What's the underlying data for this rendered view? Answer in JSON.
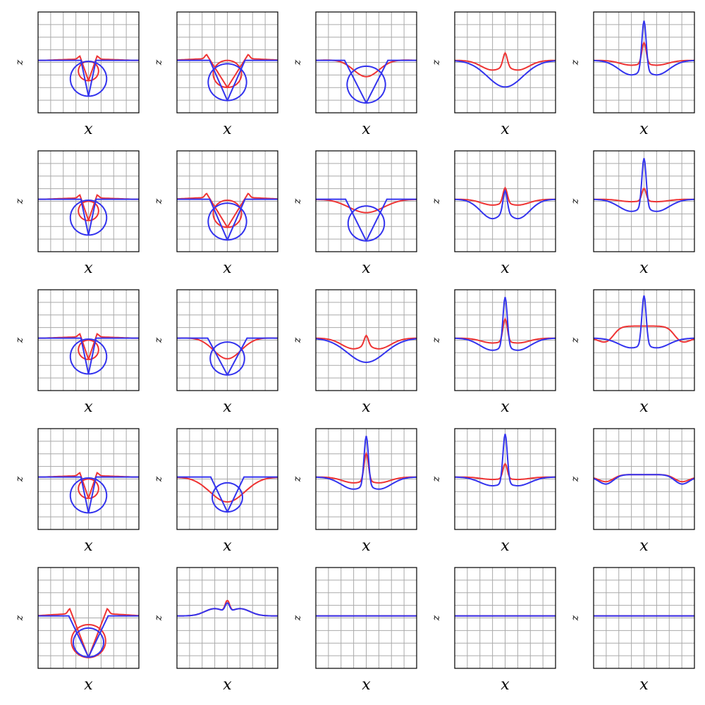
{
  "figure": {
    "rows": 5,
    "cols": 5,
    "colors": {
      "red": "#ee3333",
      "blue": "#3333ee",
      "grid": "#aaaaaa",
      "frame": "#000000"
    }
  },
  "chart_data": [
    {
      "type": "line",
      "panel": "r1c1",
      "xlabel": "x",
      "ylabel": "z",
      "series": [
        {
          "color": "red",
          "shape": "cavity",
          "params": {
            "r": 0.2,
            "cy": -0.22,
            "lip": 0.06,
            "open": 0.12
          }
        },
        {
          "color": "blue",
          "shape": "cavity",
          "params": {
            "r": 0.36,
            "cy": -0.38,
            "lip": 0.0,
            "open": 0.1
          }
        }
      ]
    },
    {
      "type": "line",
      "panel": "r1c2",
      "xlabel": "x",
      "ylabel": "z",
      "series": [
        {
          "color": "red",
          "shape": "cavity",
          "params": {
            "r": 0.28,
            "cy": -0.28,
            "lip": 0.08,
            "open": 0.36
          }
        },
        {
          "color": "blue",
          "shape": "cavity",
          "params": {
            "r": 0.38,
            "cy": -0.45,
            "lip": 0.0,
            "open": 0.3
          }
        }
      ]
    },
    {
      "type": "line",
      "panel": "r1c3",
      "xlabel": "x",
      "ylabel": "z",
      "series": [
        {
          "color": "red",
          "shape": "trough",
          "params": {
            "depth": 0.36,
            "width": 0.65,
            "edge": 0.08
          }
        },
        {
          "color": "blue",
          "shape": "cavity",
          "params": {
            "r": 0.38,
            "cy": -0.5,
            "lip": 0.0,
            "open": 0.38
          }
        }
      ]
    },
    {
      "type": "line",
      "panel": "r1c4",
      "xlabel": "x",
      "ylabel": "z",
      "series": [
        {
          "color": "red",
          "shape": "jet",
          "params": {
            "depth": 0.2,
            "width": 0.9,
            "peak": 0.26,
            "edge": 0.06
          }
        },
        {
          "color": "blue",
          "shape": "trough",
          "params": {
            "depth": 0.55,
            "width": 0.9,
            "edge": 0.0
          }
        }
      ]
    },
    {
      "type": "line",
      "panel": "r1c5",
      "xlabel": "x",
      "ylabel": "z",
      "series": [
        {
          "color": "red",
          "shape": "jet",
          "params": {
            "depth": 0.1,
            "width": 0.9,
            "peak": 0.42,
            "edge": 0.0
          }
        },
        {
          "color": "blue",
          "shape": "jet",
          "params": {
            "depth": 0.3,
            "width": 1.0,
            "peak": 1.0,
            "edge": 0.0
          }
        }
      ]
    },
    {
      "type": "line",
      "panel": "r2c1",
      "xlabel": "x",
      "ylabel": "z",
      "series": [
        {
          "color": "red",
          "shape": "cavity",
          "params": {
            "r": 0.2,
            "cy": -0.24,
            "lip": 0.06,
            "open": 0.12
          }
        },
        {
          "color": "blue",
          "shape": "cavity",
          "params": {
            "r": 0.36,
            "cy": -0.38,
            "lip": 0.0,
            "open": 0.1
          }
        }
      ]
    },
    {
      "type": "line",
      "panel": "r2c2",
      "xlabel": "x",
      "ylabel": "z",
      "series": [
        {
          "color": "red",
          "shape": "cavity",
          "params": {
            "r": 0.28,
            "cy": -0.3,
            "lip": 0.08,
            "open": 0.36
          }
        },
        {
          "color": "blue",
          "shape": "cavity",
          "params": {
            "r": 0.38,
            "cy": -0.46,
            "lip": 0.0,
            "open": 0.3
          }
        }
      ]
    },
    {
      "type": "line",
      "panel": "r2c3",
      "xlabel": "x",
      "ylabel": "z",
      "series": [
        {
          "color": "red",
          "shape": "trough",
          "params": {
            "depth": 0.3,
            "width": 0.9,
            "edge": 0.08
          }
        },
        {
          "color": "blue",
          "shape": "cavity",
          "params": {
            "r": 0.36,
            "cy": -0.5,
            "lip": 0.0,
            "open": 0.36
          }
        }
      ]
    },
    {
      "type": "line",
      "panel": "r2c4",
      "xlabel": "x",
      "ylabel": "z",
      "series": [
        {
          "color": "red",
          "shape": "jet",
          "params": {
            "depth": 0.12,
            "width": 0.9,
            "peak": 0.3,
            "edge": 0.0
          }
        },
        {
          "color": "blue",
          "shape": "jet",
          "params": {
            "depth": 0.4,
            "width": 0.95,
            "peak": 0.4,
            "edge": 0.0
          }
        }
      ]
    },
    {
      "type": "line",
      "panel": "r2c5",
      "xlabel": "x",
      "ylabel": "z",
      "series": [
        {
          "color": "red",
          "shape": "jet",
          "params": {
            "depth": 0.05,
            "width": 0.9,
            "peak": 0.25,
            "edge": 0.0
          }
        },
        {
          "color": "blue",
          "shape": "jet",
          "params": {
            "depth": 0.25,
            "width": 1.0,
            "peak": 1.0,
            "edge": 0.0
          }
        }
      ]
    },
    {
      "type": "line",
      "panel": "r3c1",
      "xlabel": "x",
      "ylabel": "z",
      "series": [
        {
          "color": "red",
          "shape": "cavity",
          "params": {
            "r": 0.2,
            "cy": -0.24,
            "lip": 0.06,
            "open": 0.12
          }
        },
        {
          "color": "blue",
          "shape": "cavity",
          "params": {
            "r": 0.36,
            "cy": -0.38,
            "lip": 0.0,
            "open": 0.1
          }
        }
      ]
    },
    {
      "type": "line",
      "panel": "r3c2",
      "xlabel": "x",
      "ylabel": "z",
      "series": [
        {
          "color": "red",
          "shape": "trough",
          "params": {
            "depth": 0.45,
            "width": 0.7,
            "edge": 0.08
          }
        },
        {
          "color": "blue",
          "shape": "cavity",
          "params": {
            "r": 0.34,
            "cy": -0.42,
            "lip": 0.0,
            "open": 0.34
          }
        }
      ]
    },
    {
      "type": "line",
      "panel": "r3c3",
      "xlabel": "x",
      "ylabel": "z",
      "series": [
        {
          "color": "red",
          "shape": "jet",
          "params": {
            "depth": 0.22,
            "width": 0.95,
            "peak": 0.18,
            "edge": 0.0
          }
        },
        {
          "color": "blue",
          "shape": "trough",
          "params": {
            "depth": 0.5,
            "width": 0.95,
            "edge": 0.0
          }
        }
      ]
    },
    {
      "type": "line",
      "panel": "r3c4",
      "xlabel": "x",
      "ylabel": "z",
      "series": [
        {
          "color": "red",
          "shape": "jet",
          "params": {
            "depth": 0.1,
            "width": 0.9,
            "peak": 0.45,
            "edge": 0.0
          }
        },
        {
          "color": "blue",
          "shape": "jet",
          "params": {
            "depth": 0.25,
            "width": 1.0,
            "peak": 1.0,
            "edge": 0.0
          }
        }
      ]
    },
    {
      "type": "line",
      "panel": "r3c5",
      "xlabel": "x",
      "ylabel": "z",
      "series": [
        {
          "color": "red",
          "shape": "plateau",
          "params": {
            "depth": 0.1,
            "height": 0.25
          }
        },
        {
          "color": "blue",
          "shape": "jet",
          "params": {
            "depth": 0.2,
            "width": 1.0,
            "peak": 1.0,
            "edge": 0.0
          }
        }
      ]
    },
    {
      "type": "line",
      "panel": "r4c1",
      "xlabel": "x",
      "ylabel": "z",
      "series": [
        {
          "color": "red",
          "shape": "cavity",
          "params": {
            "r": 0.2,
            "cy": -0.24,
            "lip": 0.06,
            "open": 0.12
          }
        },
        {
          "color": "blue",
          "shape": "cavity",
          "params": {
            "r": 0.36,
            "cy": -0.38,
            "lip": 0.0,
            "open": 0.1
          }
        }
      ]
    },
    {
      "type": "line",
      "panel": "r4c2",
      "xlabel": "x",
      "ylabel": "z",
      "series": [
        {
          "color": "red",
          "shape": "trough",
          "params": {
            "depth": 0.55,
            "width": 0.9,
            "edge": 0.12
          }
        },
        {
          "color": "blue",
          "shape": "cavity",
          "params": {
            "r": 0.3,
            "cy": -0.42,
            "lip": 0.0,
            "open": 0.28
          }
        }
      ]
    },
    {
      "type": "line",
      "panel": "r4c3",
      "xlabel": "x",
      "ylabel": "z",
      "series": [
        {
          "color": "red",
          "shape": "jet",
          "params": {
            "depth": 0.12,
            "width": 0.9,
            "peak": 0.55,
            "edge": 0.0
          }
        },
        {
          "color": "blue",
          "shape": "jet",
          "params": {
            "depth": 0.25,
            "width": 1.0,
            "peak": 1.0,
            "edge": 0.0
          }
        }
      ]
    },
    {
      "type": "line",
      "panel": "r4c4",
      "xlabel": "x",
      "ylabel": "z",
      "series": [
        {
          "color": "red",
          "shape": "jet",
          "params": {
            "depth": 0.05,
            "width": 0.9,
            "peak": 0.3,
            "edge": 0.0
          }
        },
        {
          "color": "blue",
          "shape": "jet",
          "params": {
            "depth": 0.18,
            "width": 1.0,
            "peak": 1.0,
            "edge": 0.0
          }
        }
      ]
    },
    {
      "type": "line",
      "panel": "r4c5",
      "xlabel": "x",
      "ylabel": "z",
      "series": [
        {
          "color": "red",
          "shape": "plateau",
          "params": {
            "depth": 0.1,
            "height": 0.05
          }
        },
        {
          "color": "blue",
          "shape": "plateau",
          "params": {
            "depth": 0.15,
            "height": 0.05
          }
        }
      ]
    },
    {
      "type": "line",
      "panel": "r5c1",
      "xlabel": "x",
      "ylabel": "z",
      "series": [
        {
          "color": "red",
          "shape": "cavity",
          "params": {
            "r": 0.34,
            "cy": -0.52,
            "lip": 0.1,
            "open": 0.32
          }
        },
        {
          "color": "blue",
          "shape": "cavity",
          "params": {
            "r": 0.3,
            "cy": -0.55,
            "lip": 0.0,
            "open": 0.34
          }
        }
      ]
    },
    {
      "type": "line",
      "panel": "r5c2",
      "xlabel": "x",
      "ylabel": "z",
      "series": [
        {
          "color": "red",
          "shape": "jet",
          "params": {
            "depth": -0.15,
            "width": 0.8,
            "peak": 0.25,
            "edge": 0.0
          }
        },
        {
          "color": "blue",
          "shape": "jet",
          "params": {
            "depth": -0.15,
            "width": 0.8,
            "peak": 0.2,
            "edge": 0.0
          }
        }
      ]
    },
    {
      "type": "line",
      "panel": "r5c3",
      "xlabel": "x",
      "ylabel": "z",
      "series": [
        {
          "color": "red",
          "shape": "flat",
          "params": {
            "height": 0.0
          }
        },
        {
          "color": "blue",
          "shape": "flat",
          "params": {
            "height": 0.0
          }
        }
      ]
    },
    {
      "type": "line",
      "panel": "r5c4",
      "xlabel": "x",
      "ylabel": "z",
      "series": [
        {
          "color": "red",
          "shape": "flat",
          "params": {
            "height": 0.0
          }
        },
        {
          "color": "blue",
          "shape": "flat",
          "params": {
            "height": 0.0
          }
        }
      ]
    },
    {
      "type": "line",
      "panel": "r5c5",
      "xlabel": "x",
      "ylabel": "z",
      "series": [
        {
          "color": "red",
          "shape": "flat",
          "params": {
            "height": 0.0
          }
        },
        {
          "color": "blue",
          "shape": "flat",
          "params": {
            "height": 0.0
          }
        }
      ]
    }
  ]
}
